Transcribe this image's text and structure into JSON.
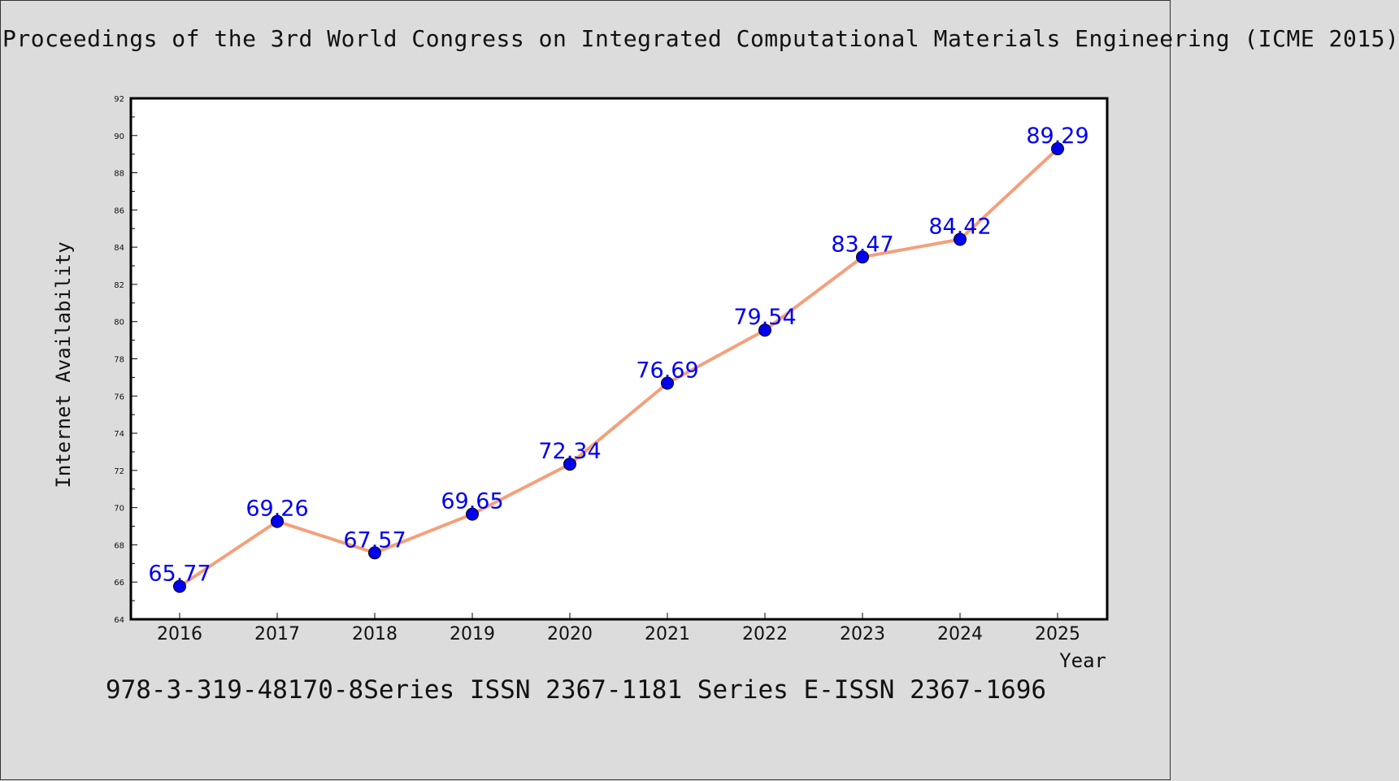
{
  "title": "Proceedings of the 3rd World Congress on Integrated Computational Materials Engineering (ICME 2015)",
  "footer": "978-3-319-48170-8Series ISSN 2367-1181 Series E-ISSN 2367-1696",
  "chart_data": {
    "type": "line",
    "xlabel": "Year",
    "ylabel": "Internet Availability",
    "categories": [
      "2016",
      "2017",
      "2018",
      "2019",
      "2020",
      "2021",
      "2022",
      "2023",
      "2024",
      "2025"
    ],
    "values": [
      65.77,
      69.26,
      67.57,
      69.65,
      72.34,
      76.69,
      79.54,
      83.47,
      84.42,
      89.29
    ],
    "data_labels": [
      "65.77",
      "69.26",
      "67.57",
      "69.65",
      "72.34",
      "76.69",
      "79.54",
      "83.47",
      "84.42",
      "89.29"
    ],
    "ylim": [
      64,
      92
    ],
    "yticks": [
      "64",
      "66",
      "68",
      "70",
      "72",
      "74",
      "76",
      "78",
      "80",
      "82",
      "84",
      "86",
      "88",
      "90",
      "92"
    ],
    "grid": false,
    "colors": {
      "line": "#f4a07c",
      "marker": "#0000ee",
      "label": "#0000ee",
      "background": "#ffffff",
      "page": "#dcdcdc"
    }
  }
}
